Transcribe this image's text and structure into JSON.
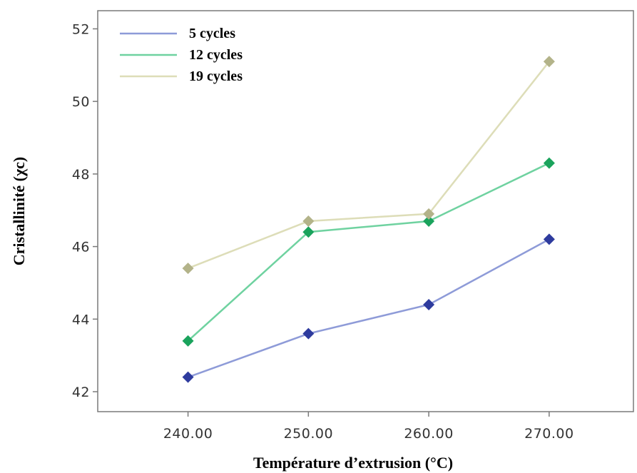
{
  "chart_data": {
    "type": "line",
    "x": [
      240,
      250,
      260,
      270
    ],
    "x_tick_labels": [
      "240.00",
      "250.00",
      "260.00",
      "270.00"
    ],
    "y_ticks": [
      42,
      44,
      46,
      48,
      50,
      52
    ],
    "y_tick_labels": [
      "42",
      "44",
      "46",
      "48",
      "50",
      "52"
    ],
    "xlim": [
      232.5,
      277
    ],
    "ylim": [
      41.45,
      52.5
    ],
    "xlabel": "Température d’extrusion (°C)",
    "ylabel": "Cristallinité (χc)",
    "legend_position": "top-left",
    "grid": false,
    "marker": "diamond",
    "series": [
      {
        "name": "5 cycles",
        "values": [
          42.4,
          43.6,
          44.4,
          46.2
        ],
        "line_color": "#8e9bd8",
        "marker_color": "#2e3b9e"
      },
      {
        "name": "12 cycles",
        "values": [
          43.4,
          46.4,
          46.7,
          48.3
        ],
        "line_color": "#6fd2a0",
        "marker_color": "#1aa35c"
      },
      {
        "name": "19 cycles",
        "values": [
          45.4,
          46.7,
          46.9,
          51.1
        ],
        "line_color": "#ddddb8",
        "marker_color": "#b3b389"
      }
    ]
  }
}
